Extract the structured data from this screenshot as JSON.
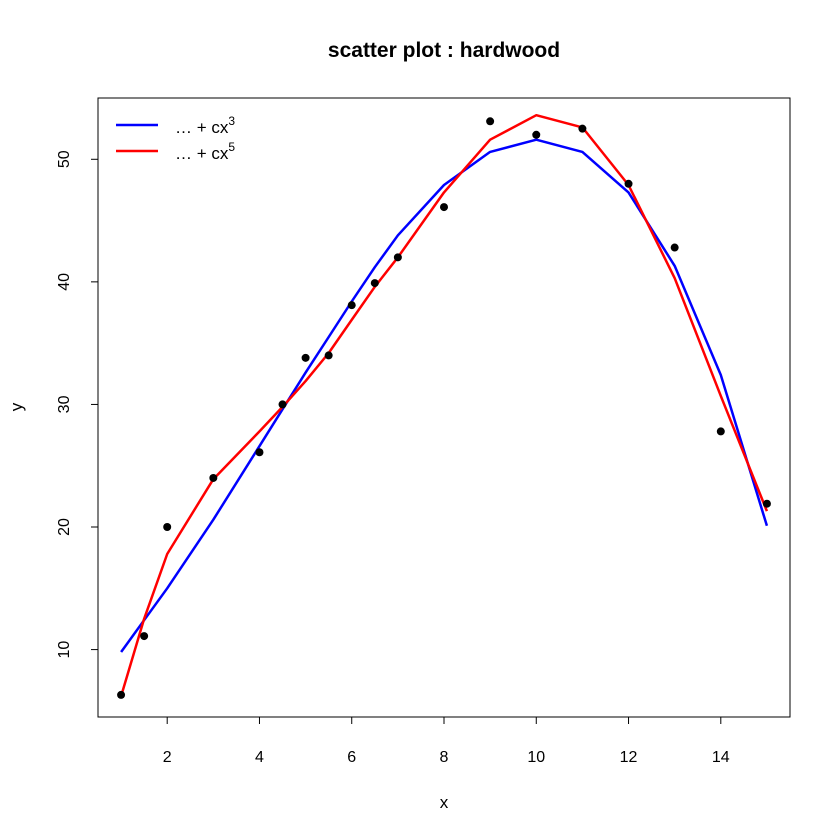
{
  "chart_data": {
    "type": "scatter",
    "title": "scatter plot : hardwood",
    "xlabel": "x",
    "ylabel": "y",
    "xlim": [
      0.5,
      15.5
    ],
    "ylim": [
      4.5,
      55
    ],
    "xticks": [
      2,
      4,
      6,
      8,
      10,
      12,
      14
    ],
    "yticks": [
      10,
      20,
      30,
      40,
      50
    ],
    "grid": false,
    "legend_position": "top-left",
    "points": {
      "x": [
        1,
        1.5,
        2,
        3,
        4,
        4.5,
        5,
        5.5,
        6,
        6.5,
        7,
        8,
        9,
        10,
        11,
        12,
        13,
        14,
        15
      ],
      "y": [
        6.3,
        11.1,
        20.0,
        24.0,
        26.1,
        30.0,
        33.8,
        34.0,
        38.1,
        39.9,
        42.0,
        46.1,
        53.1,
        52.0,
        52.5,
        48.0,
        42.8,
        27.8,
        21.9
      ],
      "color": "#000000"
    },
    "series": [
      {
        "name": "… + cx",
        "exponent": "3",
        "color": "#0000ff",
        "x": [
          1,
          1.5,
          2,
          3,
          4,
          4.5,
          5,
          5.5,
          6,
          6.5,
          7,
          8,
          9,
          10,
          11,
          12,
          13,
          14,
          15
        ],
        "y": [
          9.8,
          12.4,
          15.0,
          20.6,
          26.6,
          29.6,
          32.6,
          35.5,
          38.4,
          41.2,
          43.8,
          47.9,
          50.6,
          51.6,
          50.6,
          47.3,
          41.3,
          32.4,
          20.1
        ]
      },
      {
        "name": "… + cx",
        "exponent": "5",
        "color": "#ff0000",
        "x": [
          1,
          1.5,
          2,
          3,
          4,
          4.5,
          5,
          5.5,
          6,
          6.5,
          7,
          8,
          9,
          10,
          11,
          12,
          13,
          14,
          15
        ],
        "y": [
          6.2,
          12.5,
          17.8,
          23.9,
          27.8,
          29.8,
          31.9,
          34.2,
          36.9,
          39.6,
          42.0,
          47.3,
          51.6,
          53.6,
          52.6,
          47.9,
          40.3,
          30.7,
          21.3
        ]
      }
    ]
  }
}
